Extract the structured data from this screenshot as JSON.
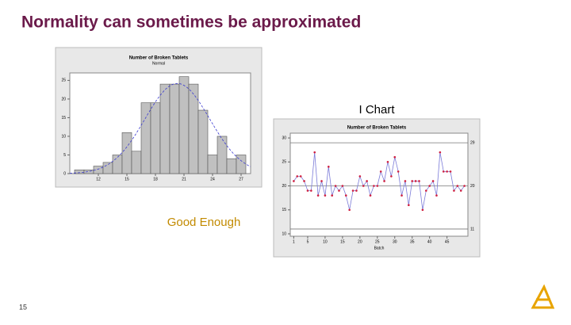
{
  "slide": {
    "title": "Normality can sometimes be approximated",
    "note_chart": "I Chart",
    "note_fit": "Good Enough",
    "page_number": "15"
  },
  "chart_data": [
    {
      "type": "histogram",
      "title": "Number of Broken Tablets",
      "subtitle": "Normal",
      "bins": [
        9.5,
        10.5,
        11.5,
        12.5,
        13.5,
        14.5,
        15.5,
        16.5,
        17.5,
        18.5,
        19.5,
        20.5,
        21.5,
        22.5,
        23.5,
        24.5,
        25.5,
        26.5,
        27.5
      ],
      "values": [
        1,
        1,
        2,
        3,
        5,
        11,
        6,
        19,
        19,
        24,
        24,
        26,
        24,
        17,
        5,
        10,
        4,
        5
      ],
      "color": "#c0c0c0",
      "fit": {
        "mean": 20.3,
        "sd": 3.4,
        "color": "#3a3ad0"
      },
      "xlim": [
        9,
        28
      ],
      "xticks": [
        12,
        15,
        18,
        21,
        24,
        27
      ],
      "ylim": [
        0,
        27
      ],
      "yticks": [
        0,
        5,
        10,
        15,
        20,
        25
      ]
    },
    {
      "type": "line",
      "title": "Number of Broken Tablets",
      "xlabel": "Batch",
      "x": [
        1,
        2,
        3,
        4,
        5,
        6,
        7,
        8,
        9,
        10,
        11,
        12,
        13,
        14,
        15,
        16,
        17,
        18,
        19,
        20,
        21,
        22,
        23,
        24,
        25,
        26,
        27,
        28,
        29,
        30,
        31,
        32,
        33,
        34,
        35,
        36,
        37,
        38,
        39,
        40,
        41,
        42,
        43,
        44,
        45,
        46,
        47,
        48,
        49,
        50
      ],
      "values": [
        21,
        22,
        22,
        21,
        19,
        19,
        27,
        18,
        21,
        18,
        24,
        18,
        20,
        19,
        20,
        18,
        15,
        19,
        19,
        22,
        20,
        21,
        18,
        20,
        20,
        23,
        21,
        25,
        22,
        26,
        23,
        18,
        21,
        16,
        21,
        21,
        21,
        15,
        19,
        20,
        21,
        18,
        27,
        23,
        23,
        23,
        19,
        20,
        19,
        20
      ],
      "color": "#7a7ad8",
      "marker_color": "#d02040",
      "ref_lines": [
        29,
        20,
        11
      ],
      "xlim": [
        0,
        51
      ],
      "xticks": [
        1,
        5,
        10,
        15,
        20,
        25,
        30,
        35,
        40,
        45
      ],
      "ylim": [
        9.5,
        31
      ],
      "yticks": [
        10,
        15,
        20,
        25,
        30
      ]
    }
  ]
}
